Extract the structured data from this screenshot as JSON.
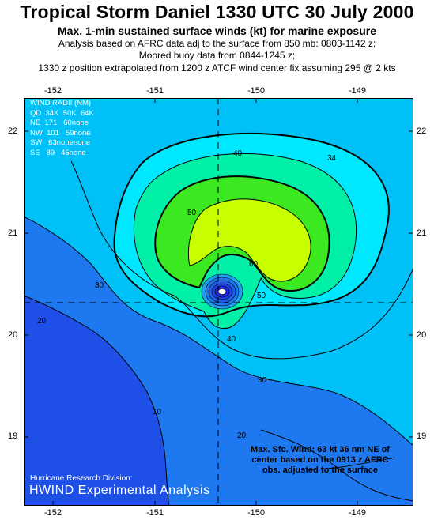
{
  "header": {
    "title": "Tropical Storm Daniel 1330 UTC 30 July 2000",
    "subtitle": "Max. 1-min sustained surface winds (kt) for marine exposure",
    "line1": "Analysis based on AFRC data adj to the surface from 850 mb: 0803-1142 z;",
    "line2": "Moored buoy data from 0844-1245 z;",
    "line3": "1330 z position extrapolated from 1200 z ATCF wind center fix assuming 295 @ 2 kts"
  },
  "axes": {
    "x_ticks": [
      "-152",
      "-151",
      "-150",
      "-149"
    ],
    "y_ticks": [
      "22",
      "21",
      "20",
      "19"
    ]
  },
  "wind_radii": {
    "title": "WIND RADII (NM)",
    "header": "QD  34K  50K  64K",
    "rows": [
      "NE  171   60none",
      "NW  101   59none",
      "SW   63nonenone",
      "SE   89   45none"
    ]
  },
  "contour_labels": [
    "34",
    "40",
    "50",
    "60",
    "30",
    "20",
    "10",
    "40",
    "50",
    "30",
    "20"
  ],
  "max_wind": {
    "line1": "Max. Sfc. Wind: 63 kt 36 nm NE of",
    "line2": "center based on the 0913 z AFRC",
    "line3": "obs. adjusted to the surface"
  },
  "credits": {
    "line1": "Hurricane Research Division:",
    "line2": "HWIND Experimental Analysis"
  },
  "colors": {
    "band_10": "#1e50e8",
    "band_20": "#1e78f0",
    "band_30": "#00c0f8",
    "band_34": "#00e8ff",
    "band_40": "#00f0a8",
    "band_50": "#3ce820",
    "band_60": "#c8ff00"
  }
}
